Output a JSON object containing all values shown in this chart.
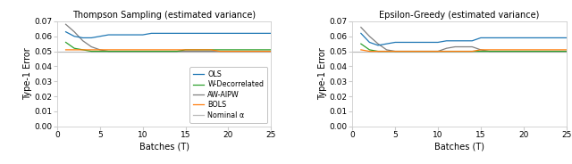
{
  "title_left": "Thompson Sampling (estimated variance)",
  "title_right": "Epsilon-Greedy (estimated variance)",
  "xlabel": "Batches (T)",
  "ylabel": "Type-1 Error",
  "ylim": [
    0.0,
    0.07
  ],
  "yticks": [
    0.0,
    0.01,
    0.02,
    0.03,
    0.04,
    0.05,
    0.06,
    0.07
  ],
  "x": [
    1,
    2,
    3,
    4,
    5,
    6,
    7,
    8,
    9,
    10,
    11,
    12,
    13,
    14,
    15,
    16,
    17,
    18,
    19,
    20,
    21,
    22,
    23,
    24,
    25
  ],
  "legend_labels": [
    "OLS",
    "W-Decorrelated",
    "AW-AIPW",
    "BOLS",
    "Nominal α"
  ],
  "color_ols": "#1f77b4",
  "color_wdec": "#2ca02c",
  "color_awaipw": "#7f7f7f",
  "color_bols": "#ff7f0e",
  "color_nominal": "#bcbcbc",
  "nominal_alpha": 0.05,
  "ts_ols": [
    0.063,
    0.06,
    0.059,
    0.059,
    0.06,
    0.061,
    0.061,
    0.061,
    0.061,
    0.061,
    0.062,
    0.062,
    0.062,
    0.062,
    0.062,
    0.062,
    0.062,
    0.062,
    0.062,
    0.062,
    0.062,
    0.062,
    0.062,
    0.062,
    0.062
  ],
  "ts_wdec": [
    0.056,
    0.052,
    0.051,
    0.05,
    0.05,
    0.05,
    0.05,
    0.05,
    0.05,
    0.05,
    0.05,
    0.05,
    0.05,
    0.05,
    0.051,
    0.051,
    0.051,
    0.051,
    0.051,
    0.051,
    0.051,
    0.051,
    0.051,
    0.051,
    0.051
  ],
  "ts_awaipw": [
    0.068,
    0.063,
    0.057,
    0.053,
    0.051,
    0.05,
    0.05,
    0.05,
    0.05,
    0.05,
    0.05,
    0.05,
    0.05,
    0.05,
    0.05,
    0.05,
    0.05,
    0.05,
    0.05,
    0.05,
    0.05,
    0.05,
    0.05,
    0.05,
    0.05
  ],
  "ts_bols": [
    0.051,
    0.051,
    0.051,
    0.051,
    0.051,
    0.051,
    0.051,
    0.051,
    0.051,
    0.051,
    0.051,
    0.051,
    0.051,
    0.051,
    0.051,
    0.051,
    0.051,
    0.051,
    0.05,
    0.05,
    0.05,
    0.05,
    0.05,
    0.05,
    0.05
  ],
  "eg_ols": [
    0.062,
    0.056,
    0.054,
    0.055,
    0.056,
    0.056,
    0.056,
    0.056,
    0.056,
    0.056,
    0.057,
    0.057,
    0.057,
    0.057,
    0.059,
    0.059,
    0.059,
    0.059,
    0.059,
    0.059,
    0.059,
    0.059,
    0.059,
    0.059,
    0.059
  ],
  "eg_wdec": [
    0.055,
    0.051,
    0.05,
    0.05,
    0.05,
    0.05,
    0.05,
    0.05,
    0.05,
    0.05,
    0.05,
    0.05,
    0.05,
    0.05,
    0.05,
    0.05,
    0.05,
    0.05,
    0.05,
    0.05,
    0.05,
    0.05,
    0.05,
    0.05,
    0.05
  ],
  "eg_awaipw": [
    0.066,
    0.06,
    0.055,
    0.051,
    0.05,
    0.05,
    0.05,
    0.05,
    0.05,
    0.05,
    0.052,
    0.053,
    0.053,
    0.053,
    0.051,
    0.05,
    0.05,
    0.05,
    0.05,
    0.05,
    0.05,
    0.05,
    0.05,
    0.05,
    0.05
  ],
  "eg_bols": [
    0.051,
    0.05,
    0.05,
    0.05,
    0.05,
    0.05,
    0.05,
    0.05,
    0.05,
    0.05,
    0.05,
    0.05,
    0.05,
    0.05,
    0.051,
    0.051,
    0.051,
    0.051,
    0.051,
    0.051,
    0.051,
    0.051,
    0.051,
    0.051,
    0.051
  ],
  "fig_width": 6.4,
  "fig_height": 1.84,
  "dpi": 100
}
